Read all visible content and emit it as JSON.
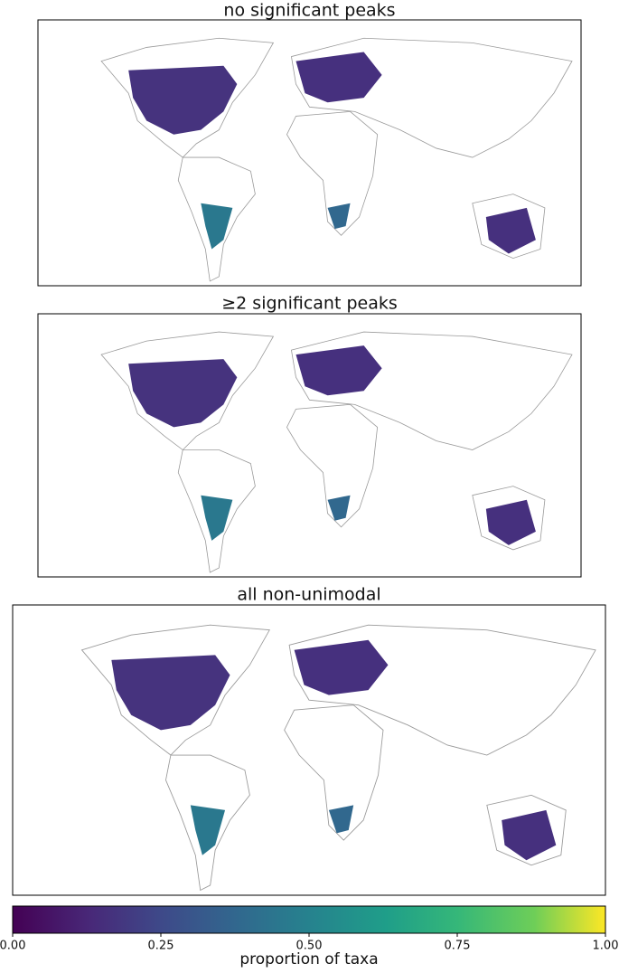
{
  "panels": [
    {
      "title": "no significant peaks"
    },
    {
      "title": "≥2 significant peaks"
    },
    {
      "title": "all non-unimodal"
    }
  ],
  "colorbar": {
    "label": "proportion of taxa",
    "lim": [
      0,
      1
    ],
    "ticks": [
      {
        "value": 0,
        "label": "0.00"
      },
      {
        "value": 0.25,
        "label": "0.25"
      },
      {
        "value": 0.5,
        "label": "0.50"
      },
      {
        "value": 0.75,
        "label": "0.75"
      },
      {
        "value": 1,
        "label": "1.00"
      }
    ]
  }
}
